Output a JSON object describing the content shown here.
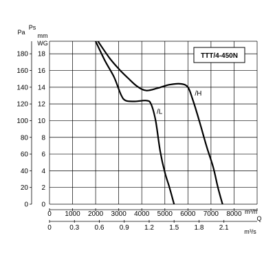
{
  "chart_data": {
    "type": "line",
    "model_label": "TTT/4-450N",
    "y_left_unit": "Pa",
    "y_right_unit_line1": "Ps",
    "y_right_unit_line2": "mm",
    "y_right_unit_line3": "WG",
    "x_top_unit": "m³/h",
    "x_top_symbol": "Q",
    "x_bottom_unit": "m³/s",
    "y_pa_ticks": [
      "0",
      "20",
      "40",
      "60",
      "80",
      "100",
      "120",
      "140",
      "160",
      "180"
    ],
    "y_mmwg_ticks": [
      "0",
      "2",
      "4",
      "6",
      "8",
      "10",
      "12",
      "14",
      "16",
      "18"
    ],
    "x_m3h_ticks": [
      "0",
      "1000",
      "2000",
      "3000",
      "4000",
      "5000",
      "6000",
      "7000",
      "8000"
    ],
    "x_m3s_ticks": [
      "0",
      "0.3",
      "0.6",
      "0.9",
      "1.2",
      "1.5",
      "1.8",
      "2.1"
    ],
    "xlim_m3h": [
      0,
      9000
    ],
    "ylim_pa": [
      0,
      195
    ],
    "grid": true,
    "series": [
      {
        "name": "/H",
        "points": [
          [
            2100,
            195
          ],
          [
            2600,
            175
          ],
          [
            3000,
            162
          ],
          [
            3400,
            151
          ],
          [
            3800,
            141
          ],
          [
            4200,
            136
          ],
          [
            4700,
            139
          ],
          [
            5200,
            143
          ],
          [
            5700,
            144
          ],
          [
            6000,
            140
          ],
          [
            6200,
            126
          ],
          [
            6500,
            99
          ],
          [
            6800,
            70
          ],
          [
            7100,
            44
          ],
          [
            7300,
            20
          ],
          [
            7500,
            0
          ]
        ]
      },
      {
        "name": "/L",
        "points": [
          [
            2000,
            195
          ],
          [
            2400,
            172
          ],
          [
            2800,
            152
          ],
          [
            3100,
            131
          ],
          [
            3300,
            124
          ],
          [
            3700,
            123
          ],
          [
            4200,
            124
          ],
          [
            4400,
            120
          ],
          [
            4600,
            100
          ],
          [
            4800,
            63
          ],
          [
            5000,
            38
          ],
          [
            5200,
            20
          ],
          [
            5400,
            0
          ]
        ]
      }
    ]
  }
}
